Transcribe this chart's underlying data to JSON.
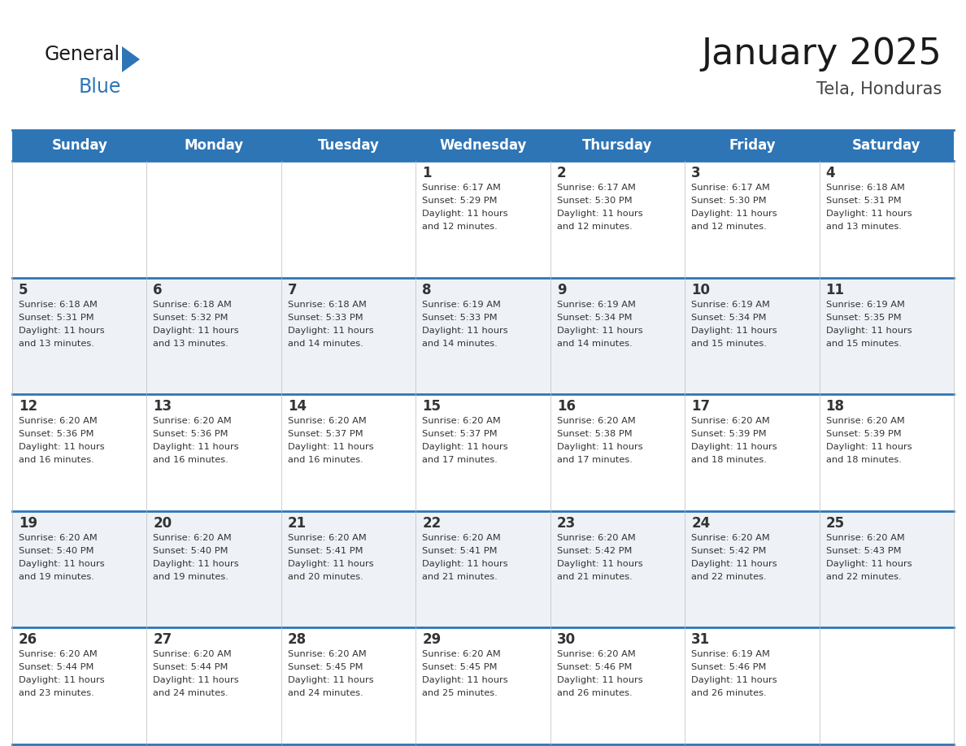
{
  "title": "January 2025",
  "subtitle": "Tela, Honduras",
  "header_color": "#2E75B6",
  "header_text_color": "#FFFFFF",
  "cell_bg_even": "#FFFFFF",
  "cell_bg_odd": "#EEF2F7",
  "border_color": "#2E75B6",
  "text_color": "#333333",
  "day_names": [
    "Sunday",
    "Monday",
    "Tuesday",
    "Wednesday",
    "Thursday",
    "Friday",
    "Saturday"
  ],
  "title_fontsize": 32,
  "subtitle_fontsize": 15,
  "header_fontsize": 12,
  "day_num_fontsize": 12,
  "cell_text_fontsize": 8.2,
  "days": [
    {
      "day": 1,
      "col": 3,
      "row": 0,
      "sunrise": "6:17 AM",
      "sunset": "5:29 PM",
      "daylight": "11 hours and 12 minutes."
    },
    {
      "day": 2,
      "col": 4,
      "row": 0,
      "sunrise": "6:17 AM",
      "sunset": "5:30 PM",
      "daylight": "11 hours and 12 minutes."
    },
    {
      "day": 3,
      "col": 5,
      "row": 0,
      "sunrise": "6:17 AM",
      "sunset": "5:30 PM",
      "daylight": "11 hours and 12 minutes."
    },
    {
      "day": 4,
      "col": 6,
      "row": 0,
      "sunrise": "6:18 AM",
      "sunset": "5:31 PM",
      "daylight": "11 hours and 13 minutes."
    },
    {
      "day": 5,
      "col": 0,
      "row": 1,
      "sunrise": "6:18 AM",
      "sunset": "5:31 PM",
      "daylight": "11 hours and 13 minutes."
    },
    {
      "day": 6,
      "col": 1,
      "row": 1,
      "sunrise": "6:18 AM",
      "sunset": "5:32 PM",
      "daylight": "11 hours and 13 minutes."
    },
    {
      "day": 7,
      "col": 2,
      "row": 1,
      "sunrise": "6:18 AM",
      "sunset": "5:33 PM",
      "daylight": "11 hours and 14 minutes."
    },
    {
      "day": 8,
      "col": 3,
      "row": 1,
      "sunrise": "6:19 AM",
      "sunset": "5:33 PM",
      "daylight": "11 hours and 14 minutes."
    },
    {
      "day": 9,
      "col": 4,
      "row": 1,
      "sunrise": "6:19 AM",
      "sunset": "5:34 PM",
      "daylight": "11 hours and 14 minutes."
    },
    {
      "day": 10,
      "col": 5,
      "row": 1,
      "sunrise": "6:19 AM",
      "sunset": "5:34 PM",
      "daylight": "11 hours and 15 minutes."
    },
    {
      "day": 11,
      "col": 6,
      "row": 1,
      "sunrise": "6:19 AM",
      "sunset": "5:35 PM",
      "daylight": "11 hours and 15 minutes."
    },
    {
      "day": 12,
      "col": 0,
      "row": 2,
      "sunrise": "6:20 AM",
      "sunset": "5:36 PM",
      "daylight": "11 hours and 16 minutes."
    },
    {
      "day": 13,
      "col": 1,
      "row": 2,
      "sunrise": "6:20 AM",
      "sunset": "5:36 PM",
      "daylight": "11 hours and 16 minutes."
    },
    {
      "day": 14,
      "col": 2,
      "row": 2,
      "sunrise": "6:20 AM",
      "sunset": "5:37 PM",
      "daylight": "11 hours and 16 minutes."
    },
    {
      "day": 15,
      "col": 3,
      "row": 2,
      "sunrise": "6:20 AM",
      "sunset": "5:37 PM",
      "daylight": "11 hours and 17 minutes."
    },
    {
      "day": 16,
      "col": 4,
      "row": 2,
      "sunrise": "6:20 AM",
      "sunset": "5:38 PM",
      "daylight": "11 hours and 17 minutes."
    },
    {
      "day": 17,
      "col": 5,
      "row": 2,
      "sunrise": "6:20 AM",
      "sunset": "5:39 PM",
      "daylight": "11 hours and 18 minutes."
    },
    {
      "day": 18,
      "col": 6,
      "row": 2,
      "sunrise": "6:20 AM",
      "sunset": "5:39 PM",
      "daylight": "11 hours and 18 minutes."
    },
    {
      "day": 19,
      "col": 0,
      "row": 3,
      "sunrise": "6:20 AM",
      "sunset": "5:40 PM",
      "daylight": "11 hours and 19 minutes."
    },
    {
      "day": 20,
      "col": 1,
      "row": 3,
      "sunrise": "6:20 AM",
      "sunset": "5:40 PM",
      "daylight": "11 hours and 19 minutes."
    },
    {
      "day": 21,
      "col": 2,
      "row": 3,
      "sunrise": "6:20 AM",
      "sunset": "5:41 PM",
      "daylight": "11 hours and 20 minutes."
    },
    {
      "day": 22,
      "col": 3,
      "row": 3,
      "sunrise": "6:20 AM",
      "sunset": "5:41 PM",
      "daylight": "11 hours and 21 minutes."
    },
    {
      "day": 23,
      "col": 4,
      "row": 3,
      "sunrise": "6:20 AM",
      "sunset": "5:42 PM",
      "daylight": "11 hours and 21 minutes."
    },
    {
      "day": 24,
      "col": 5,
      "row": 3,
      "sunrise": "6:20 AM",
      "sunset": "5:42 PM",
      "daylight": "11 hours and 22 minutes."
    },
    {
      "day": 25,
      "col": 6,
      "row": 3,
      "sunrise": "6:20 AM",
      "sunset": "5:43 PM",
      "daylight": "11 hours and 22 minutes."
    },
    {
      "day": 26,
      "col": 0,
      "row": 4,
      "sunrise": "6:20 AM",
      "sunset": "5:44 PM",
      "daylight": "11 hours and 23 minutes."
    },
    {
      "day": 27,
      "col": 1,
      "row": 4,
      "sunrise": "6:20 AM",
      "sunset": "5:44 PM",
      "daylight": "11 hours and 24 minutes."
    },
    {
      "day": 28,
      "col": 2,
      "row": 4,
      "sunrise": "6:20 AM",
      "sunset": "5:45 PM",
      "daylight": "11 hours and 24 minutes."
    },
    {
      "day": 29,
      "col": 3,
      "row": 4,
      "sunrise": "6:20 AM",
      "sunset": "5:45 PM",
      "daylight": "11 hours and 25 minutes."
    },
    {
      "day": 30,
      "col": 4,
      "row": 4,
      "sunrise": "6:20 AM",
      "sunset": "5:46 PM",
      "daylight": "11 hours and 26 minutes."
    },
    {
      "day": 31,
      "col": 5,
      "row": 4,
      "sunrise": "6:19 AM",
      "sunset": "5:46 PM",
      "daylight": "11 hours and 26 minutes."
    }
  ]
}
